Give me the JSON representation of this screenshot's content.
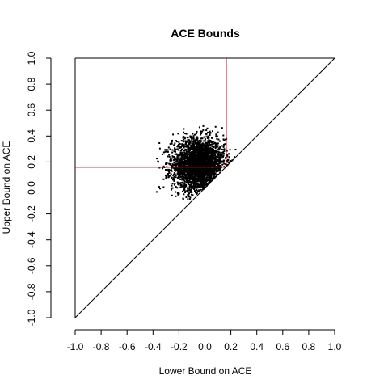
{
  "chart_data": {
    "type": "scatter",
    "title": "ACE Bounds",
    "xlabel": "Lower Bound on ACE",
    "ylabel": "Upper Bound on ACE",
    "xlim": [
      -1.0,
      1.0
    ],
    "ylim": [
      -1.0,
      1.0
    ],
    "x_ticks": [
      "-1.0",
      "-0.8",
      "-0.6",
      "-0.4",
      "-0.2",
      "0.0",
      "0.2",
      "0.4",
      "0.6",
      "0.8",
      "1.0"
    ],
    "y_ticks": [
      "-1.0",
      "-0.8",
      "-0.6",
      "-0.4",
      "-0.2",
      "0.0",
      "0.2",
      "0.4",
      "0.6",
      "0.8",
      "1.0"
    ],
    "grid": false,
    "legend": "none",
    "point_cloud": {
      "center": [
        -0.05,
        0.18
      ],
      "spread": [
        0.1,
        0.1
      ],
      "constraint": "y >= x",
      "x_range": [
        -0.4,
        0.25
      ],
      "y_range": [
        -0.13,
        0.5
      ],
      "count": 3000,
      "color": "#000000"
    },
    "reference_lines": [
      {
        "name": "identity",
        "from": [
          -1.0,
          -1.0
        ],
        "to": [
          1.0,
          1.0
        ],
        "color": "#000000"
      }
    ],
    "red_lines": {
      "color": "#cc0000",
      "x_at": 0.165,
      "y_at": 0.16
    }
  }
}
